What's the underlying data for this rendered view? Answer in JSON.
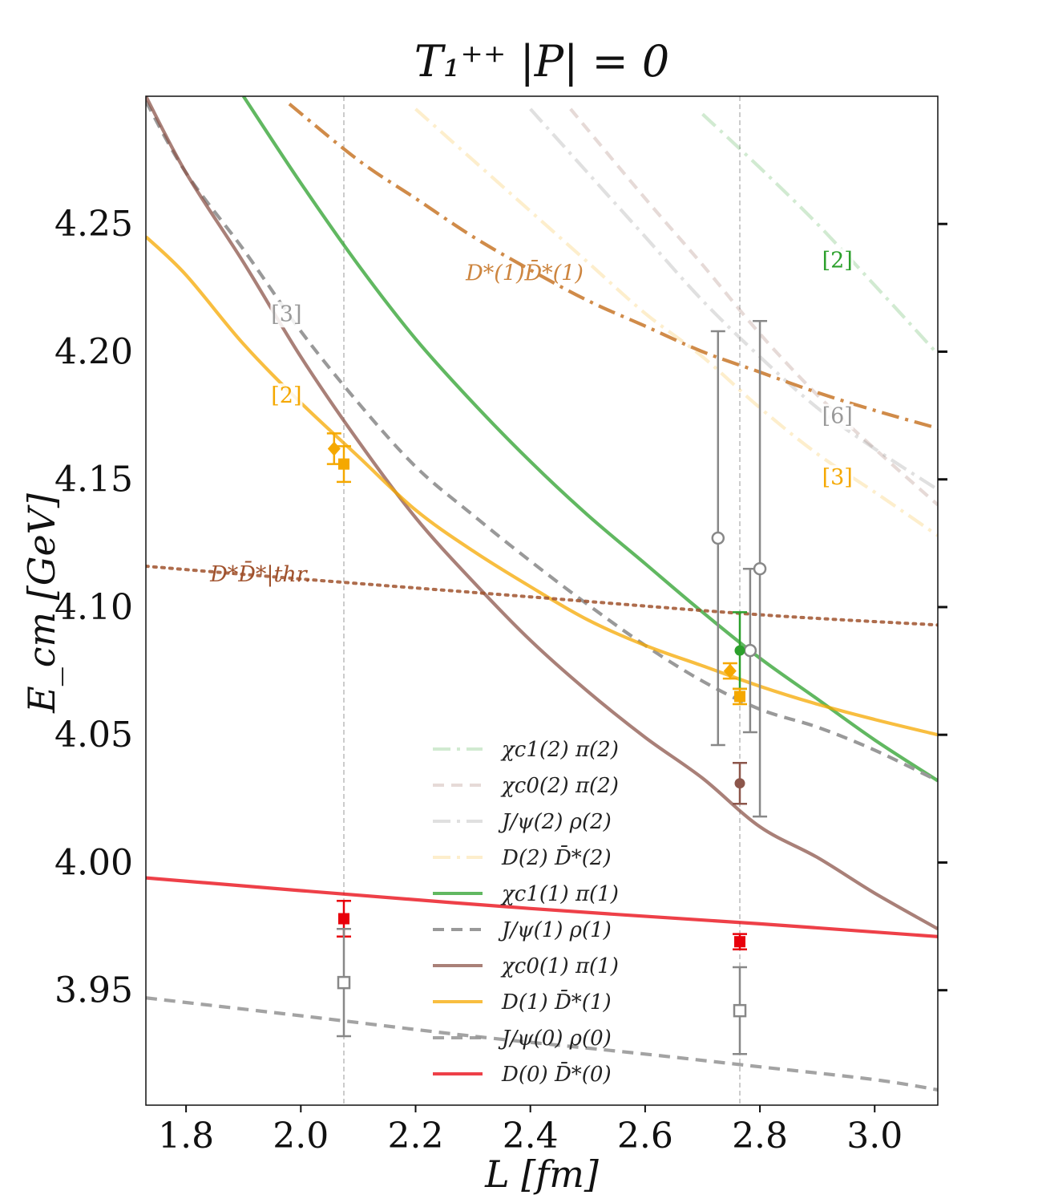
{
  "chart_data": {
    "type": "line",
    "title": "T₁⁺⁺ |P| = 0",
    "xlabel": "L [fm]",
    "ylabel": "E_cm [GeV]",
    "xlim": [
      1.73,
      3.11
    ],
    "ylim": [
      3.905,
      4.3
    ],
    "xticks": [
      "1.8",
      "2.0",
      "2.2",
      "2.4",
      "2.6",
      "2.8",
      "3.0"
    ],
    "yticks": [
      "3.95",
      "4.00",
      "4.05",
      "4.10",
      "4.15",
      "4.20",
      "4.25"
    ],
    "vlines": [
      2.075,
      2.765
    ],
    "curves": [
      {
        "name": "χc1(2) π(2)",
        "color": "#2ca02c",
        "opacity": 0.22,
        "dash": "dashdot",
        "points": [
          [
            2.7,
            4.293
          ],
          [
            2.8,
            4.272
          ],
          [
            2.9,
            4.25
          ],
          [
            3.0,
            4.226
          ],
          [
            3.11,
            4.199
          ]
        ]
      },
      {
        "name": "χc0(2) π(2)",
        "color": "#8c564b",
        "opacity": 0.22,
        "dash": "dash",
        "points": [
          [
            2.47,
            4.295
          ],
          [
            2.6,
            4.26
          ],
          [
            2.7,
            4.234
          ],
          [
            2.8,
            4.207
          ],
          [
            2.9,
            4.183
          ],
          [
            3.0,
            4.162
          ],
          [
            3.11,
            4.14
          ]
        ]
      },
      {
        "name": "J/ψ(2) ρ(2)",
        "color": "#999999",
        "opacity": 0.3,
        "dash": "dashdot",
        "points": [
          [
            2.4,
            4.295
          ],
          [
            2.5,
            4.27
          ],
          [
            2.6,
            4.245
          ],
          [
            2.7,
            4.22
          ],
          [
            2.8,
            4.198
          ],
          [
            2.9,
            4.178
          ],
          [
            3.0,
            4.162
          ],
          [
            3.11,
            4.146
          ]
        ]
      },
      {
        "name": "D(2) D̄*(2)",
        "color": "#f5a800",
        "opacity": 0.2,
        "dash": "dashdot",
        "points": [
          [
            2.2,
            4.295
          ],
          [
            2.3,
            4.275
          ],
          [
            2.4,
            4.255
          ],
          [
            2.5,
            4.235
          ],
          [
            2.6,
            4.215
          ],
          [
            2.7,
            4.198
          ],
          [
            2.8,
            4.178
          ],
          [
            2.9,
            4.16
          ],
          [
            3.0,
            4.145
          ],
          [
            3.11,
            4.128
          ]
        ]
      },
      {
        "name": "D*(1) D̄*(1)",
        "color": "#cd853f",
        "opacity": 0.95,
        "dash": "dashdot",
        "points": [
          [
            1.98,
            4.297
          ],
          [
            2.1,
            4.275
          ],
          [
            2.2,
            4.26
          ],
          [
            2.3,
            4.245
          ],
          [
            2.4,
            4.232
          ],
          [
            2.5,
            4.22
          ],
          [
            2.6,
            4.21
          ],
          [
            2.7,
            4.2
          ],
          [
            2.8,
            4.192
          ],
          [
            2.9,
            4.184
          ],
          [
            3.0,
            4.177
          ],
          [
            3.11,
            4.17
          ]
        ]
      },
      {
        "name": "χc1(1) π(1)",
        "color": "#2ca02c",
        "opacity": 0.75,
        "dash": "solid",
        "points": [
          [
            1.9,
            4.3
          ],
          [
            2.0,
            4.266
          ],
          [
            2.1,
            4.234
          ],
          [
            2.2,
            4.205
          ],
          [
            2.3,
            4.18
          ],
          [
            2.4,
            4.157
          ],
          [
            2.5,
            4.136
          ],
          [
            2.6,
            4.117
          ],
          [
            2.7,
            4.098
          ],
          [
            2.8,
            4.08
          ],
          [
            2.9,
            4.064
          ],
          [
            3.0,
            4.048
          ],
          [
            3.11,
            4.032
          ]
        ]
      },
      {
        "name": "J/ψ(1) ρ(1)",
        "color": "#999999",
        "opacity": 1.0,
        "dash": "dash",
        "points": [
          [
            1.73,
            4.298
          ],
          [
            1.8,
            4.27
          ],
          [
            1.9,
            4.24
          ],
          [
            2.0,
            4.208
          ],
          [
            2.1,
            4.18
          ],
          [
            2.2,
            4.155
          ],
          [
            2.3,
            4.136
          ],
          [
            2.4,
            4.118
          ],
          [
            2.5,
            4.101
          ],
          [
            2.6,
            4.085
          ],
          [
            2.7,
            4.071
          ],
          [
            2.8,
            4.06
          ],
          [
            2.9,
            4.053
          ],
          [
            3.0,
            4.044
          ],
          [
            3.11,
            4.032
          ]
        ]
      },
      {
        "name": "χc0(1) π(1)",
        "color": "#8c564b",
        "opacity": 0.75,
        "dash": "solid",
        "points": [
          [
            1.73,
            4.3
          ],
          [
            1.8,
            4.27
          ],
          [
            1.9,
            4.235
          ],
          [
            2.0,
            4.198
          ],
          [
            2.1,
            4.165
          ],
          [
            2.2,
            4.135
          ],
          [
            2.3,
            4.11
          ],
          [
            2.4,
            4.087
          ],
          [
            2.5,
            4.067
          ],
          [
            2.6,
            4.049
          ],
          [
            2.7,
            4.033
          ],
          [
            2.8,
            4.014
          ],
          [
            2.9,
            4.002
          ],
          [
            3.0,
            3.988
          ],
          [
            3.11,
            3.974
          ]
        ]
      },
      {
        "name": "D(1) D̄*(1)",
        "color": "#f5a800",
        "opacity": 0.75,
        "dash": "solid",
        "points": [
          [
            1.73,
            4.245
          ],
          [
            1.8,
            4.23
          ],
          [
            1.9,
            4.203
          ],
          [
            2.0,
            4.18
          ],
          [
            2.1,
            4.159
          ],
          [
            2.2,
            4.138
          ],
          [
            2.3,
            4.122
          ],
          [
            2.4,
            4.108
          ],
          [
            2.5,
            4.095
          ],
          [
            2.6,
            4.085
          ],
          [
            2.7,
            4.077
          ],
          [
            2.8,
            4.069
          ],
          [
            2.9,
            4.062
          ],
          [
            3.0,
            4.056
          ],
          [
            3.11,
            4.05
          ]
        ]
      },
      {
        "name": "D*D̄*|thr.",
        "color": "#a0522d",
        "opacity": 0.85,
        "dash": "dot",
        "points": [
          [
            1.73,
            4.116
          ],
          [
            2.0,
            4.111
          ],
          [
            2.4,
            4.104
          ],
          [
            2.8,
            4.097
          ],
          [
            3.11,
            4.093
          ]
        ]
      },
      {
        "name": "J/ψ(0) ρ(0)",
        "color": "#999999",
        "opacity": 0.9,
        "dash": "dash",
        "points": [
          [
            1.73,
            3.947
          ],
          [
            2.0,
            3.94
          ],
          [
            2.3,
            3.932
          ],
          [
            2.6,
            3.925
          ],
          [
            2.8,
            3.92
          ],
          [
            3.0,
            3.915
          ],
          [
            3.11,
            3.911
          ]
        ]
      },
      {
        "name": "D(0) D̄*(0)",
        "color": "#e8000b",
        "opacity": 0.75,
        "dash": "solid",
        "points": [
          [
            1.73,
            3.994
          ],
          [
            2.0,
            3.989
          ],
          [
            2.4,
            3.982
          ],
          [
            2.8,
            3.976
          ],
          [
            3.11,
            3.971
          ]
        ]
      }
    ],
    "points": [
      {
        "marker": "diamond",
        "color": "#f5a800",
        "x": 2.058,
        "y": 4.162,
        "err": 0.006
      },
      {
        "marker": "square",
        "color": "#f5a800",
        "x": 2.075,
        "y": 4.156,
        "err": 0.007
      },
      {
        "marker": "square",
        "color": "#e8000b",
        "x": 2.075,
        "y": 3.978,
        "err": 0.007
      },
      {
        "marker": "open-square",
        "color": "#888888",
        "x": 2.075,
        "y": 3.953,
        "err": 0.021
      },
      {
        "marker": "open-circle",
        "color": "#888888",
        "x": 2.727,
        "y": 4.127,
        "err": 0.081
      },
      {
        "marker": "open-circle",
        "color": "#888888",
        "x": 2.783,
        "y": 4.083,
        "err": 0.032
      },
      {
        "marker": "open-circle",
        "color": "#888888",
        "x": 2.8,
        "y": 4.115,
        "err": 0.097
      },
      {
        "marker": "circle",
        "color": "#2ca02c",
        "x": 2.765,
        "y": 4.083,
        "err": 0.015
      },
      {
        "marker": "diamond",
        "color": "#f5a800",
        "x": 2.748,
        "y": 4.075,
        "err": 0.003
      },
      {
        "marker": "square",
        "color": "#f5a800",
        "x": 2.765,
        "y": 4.065,
        "err": 0.003
      },
      {
        "marker": "circle",
        "color": "#8c564b",
        "x": 2.765,
        "y": 4.031,
        "err": 0.008
      },
      {
        "marker": "square",
        "color": "#e8000b",
        "x": 2.765,
        "y": 3.969,
        "err": 0.003
      },
      {
        "marker": "open-square",
        "color": "#888888",
        "x": 2.765,
        "y": 3.942,
        "err": 0.017
      }
    ],
    "annotations": [
      {
        "text": "D*(1)D̄*(1)",
        "color": "#cd853f",
        "x": 2.39,
        "y": 4.228
      },
      {
        "text": "D*D̄*|thr.",
        "color": "#a0522d",
        "x": 1.93,
        "y": 4.11
      },
      {
        "text": "[3]",
        "color": "#999999",
        "x": 1.975,
        "y": 4.212
      },
      {
        "text": "[2]",
        "color": "#f5a800",
        "x": 1.975,
        "y": 4.18
      },
      {
        "text": "[2]",
        "color": "#2ca02c",
        "x": 2.935,
        "y": 4.233
      },
      {
        "text": "[6]",
        "color": "#999999",
        "x": 2.935,
        "y": 4.172
      },
      {
        "text": "[3]",
        "color": "#f5a800",
        "x": 2.935,
        "y": 4.148
      }
    ],
    "legend": {
      "position": "bottom-center",
      "entries": [
        {
          "label": "χc1(2) π(2)",
          "color": "#2ca02c",
          "opacity": 0.22,
          "dash": "dashdot"
        },
        {
          "label": "χc0(2) π(2)",
          "color": "#8c564b",
          "opacity": 0.22,
          "dash": "dash"
        },
        {
          "label": "J/ψ(2) ρ(2)",
          "color": "#999999",
          "opacity": 0.3,
          "dash": "dashdot"
        },
        {
          "label": "D(2) D̄*(2)",
          "color": "#f5a800",
          "opacity": 0.2,
          "dash": "dashdot"
        },
        {
          "label": "χc1(1) π(1)",
          "color": "#2ca02c",
          "opacity": 0.75,
          "dash": "solid"
        },
        {
          "label": "J/ψ(1) ρ(1)",
          "color": "#999999",
          "opacity": 1.0,
          "dash": "dash"
        },
        {
          "label": "χc0(1) π(1)",
          "color": "#8c564b",
          "opacity": 0.75,
          "dash": "solid"
        },
        {
          "label": "D(1) D̄*(1)",
          "color": "#f5a800",
          "opacity": 0.75,
          "dash": "solid"
        },
        {
          "label": "J/ψ(0) ρ(0)",
          "color": "#999999",
          "opacity": 0.9,
          "dash": "dash"
        },
        {
          "label": "D(0) D̄*(0)",
          "color": "#e8000b",
          "opacity": 0.75,
          "dash": "solid"
        }
      ]
    }
  }
}
